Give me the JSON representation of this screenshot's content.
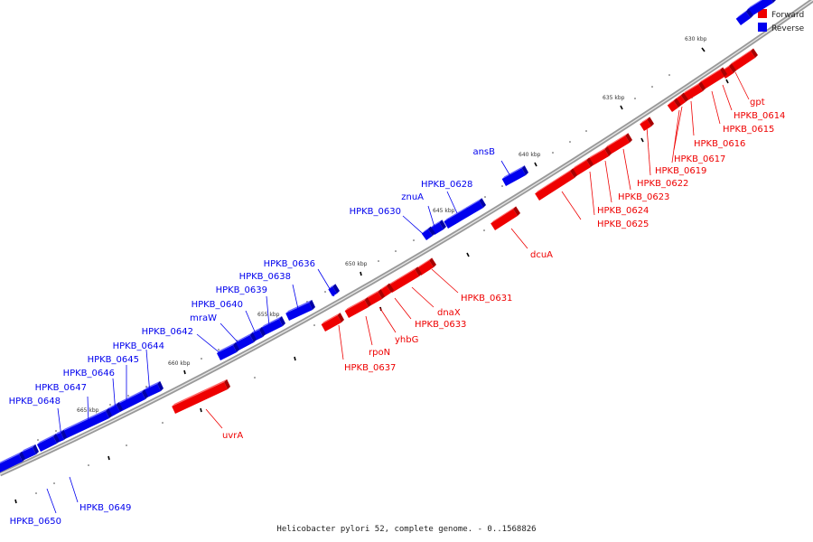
{
  "legend": [
    {
      "label": "Forward",
      "color": "#ee0000"
    },
    {
      "label": "Reverse",
      "color": "#0000ee"
    }
  ],
  "caption": "Helicobacter pylori 52, complete genome. - 0..1568826",
  "ticks": [
    "630 kbp",
    "635 kbp",
    "640 kbp",
    "645 kbp",
    "650 kbp",
    "655 kbp",
    "660 kbp",
    "665 kbp"
  ],
  "forward_labels": [
    "gpt",
    "HPKB_0614",
    "HPKB_0615",
    "HPKB_0616",
    "HPKB_0617",
    "HPKB_0619",
    "HPKB_0622",
    "HPKB_0623",
    "HPKB_0624",
    "HPKB_0625",
    "dcuA",
    "HPKB_0631",
    "dnaX",
    "HPKB_0633",
    "yhbG",
    "rpoN",
    "HPKB_0637",
    "uvrA"
  ],
  "reverse_labels": [
    "ansB",
    "HPKB_0628",
    "znuA",
    "HPKB_0630",
    "HPKB_0636",
    "HPKB_0638",
    "HPKB_0639",
    "HPKB_0640",
    "mraW",
    "HPKB_0642",
    "HPKB_0644",
    "HPKB_0645",
    "HPKB_0646",
    "HPKB_0647",
    "HPKB_0648",
    "HPKB_0649",
    "HPKB_0650"
  ],
  "colors": {
    "forward": "#ee0000",
    "reverse": "#0000ee",
    "backbone": "#888888"
  }
}
